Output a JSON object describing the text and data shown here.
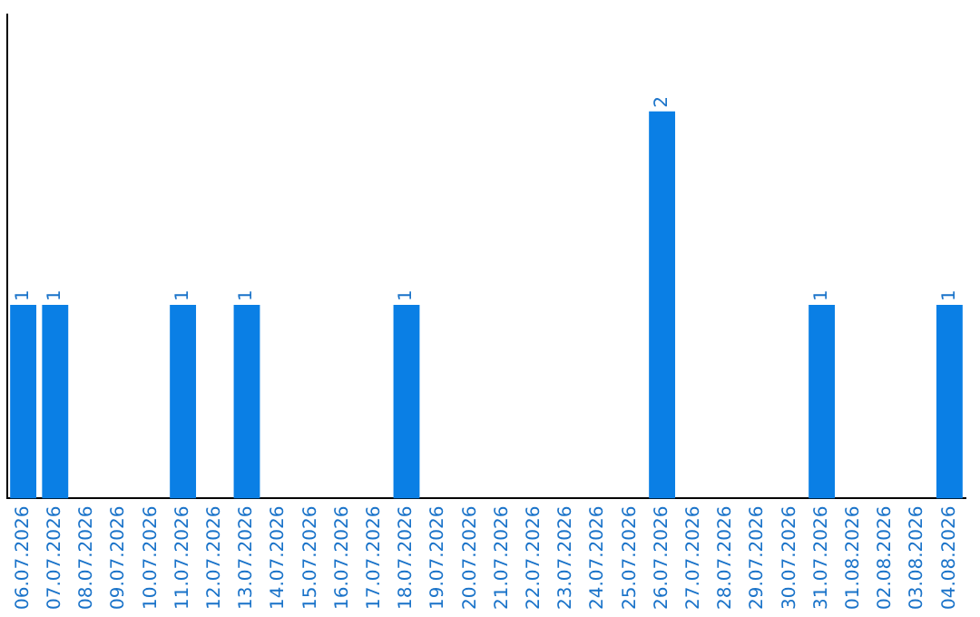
{
  "chart_data": {
    "type": "bar",
    "categories": [
      "06.07.2026",
      "07.07.2026",
      "08.07.2026",
      "09.07.2026",
      "10.07.2026",
      "11.07.2026",
      "12.07.2026",
      "13.07.2026",
      "14.07.2026",
      "15.07.2026",
      "16.07.2026",
      "17.07.2026",
      "18.07.2026",
      "19.07.2026",
      "20.07.2026",
      "21.07.2026",
      "22.07.2026",
      "23.07.2026",
      "24.07.2026",
      "25.07.2026",
      "26.07.2026",
      "27.07.2026",
      "28.07.2026",
      "29.07.2026",
      "30.07.2026",
      "31.07.2026",
      "01.08.2026",
      "02.08.2026",
      "03.08.2026",
      "04.08.2026"
    ],
    "values": [
      1,
      1,
      0,
      0,
      0,
      1,
      0,
      1,
      0,
      0,
      0,
      0,
      1,
      0,
      0,
      0,
      0,
      0,
      0,
      0,
      2,
      0,
      0,
      0,
      0,
      1,
      0,
      0,
      0,
      1
    ],
    "value_labels": [
      "1",
      "1",
      null,
      null,
      null,
      "1",
      null,
      "1",
      null,
      null,
      null,
      null,
      "1",
      null,
      null,
      null,
      null,
      null,
      null,
      null,
      "2",
      null,
      null,
      null,
      null,
      "1",
      null,
      null,
      null,
      "1"
    ],
    "color": "#0a7fe5",
    "grid": false,
    "legend": false,
    "tick_labels": "x"
  }
}
